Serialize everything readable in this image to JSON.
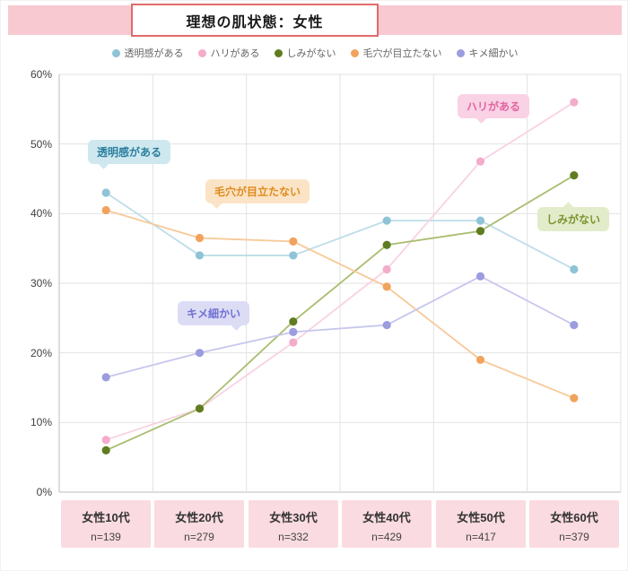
{
  "header": {
    "title": "理想の肌状態：女性"
  },
  "chart_data": {
    "type": "line",
    "title": "理想の肌状態：女性",
    "categories": [
      "女性10代",
      "女性20代",
      "女性30代",
      "女性40代",
      "女性50代",
      "女性60代"
    ],
    "category_sublabels": [
      "n=139",
      "n=279",
      "n=332",
      "n=429",
      "n=417",
      "n=379"
    ],
    "ylim": [
      0,
      60
    ],
    "ytick_step": 10,
    "ytick_labels_top_down": [
      "60%",
      "50%",
      "40%",
      "30%",
      "20%",
      "10%",
      "0%"
    ],
    "grid": true,
    "legend_position": "top",
    "series": [
      {
        "name": "透明感がある",
        "marker_color": "#8fc3d6",
        "line_color": "#bddde8",
        "values": [
          43,
          34,
          34,
          39,
          39,
          32
        ]
      },
      {
        "name": "ハリがある",
        "marker_color": "#f3accb",
        "line_color": "#f9d2e3",
        "values": [
          7.5,
          12,
          21.5,
          32,
          47.5,
          56
        ]
      },
      {
        "name": "しみがない",
        "marker_color": "#5f7d20",
        "line_color": "#a9bd6f",
        "values": [
          6,
          12,
          24.5,
          35.5,
          37.5,
          45.5
        ]
      },
      {
        "name": "毛穴が目立たない",
        "marker_color": "#f1a35d",
        "line_color": "#f7c998",
        "values": [
          40.5,
          36.5,
          36,
          29.5,
          19,
          13.5
        ]
      },
      {
        "name": "キメ細かい",
        "marker_color": "#9c9cdf",
        "line_color": "#c6c6ee",
        "values": [
          16.5,
          20,
          23,
          24,
          31,
          24
        ]
      }
    ],
    "annotations": [
      {
        "text": "透明感がある",
        "fg": "#2b7f9e",
        "bg": "#cfe8f0"
      },
      {
        "text": "毛穴が目立たない",
        "fg": "#e08a1e",
        "bg": "#fbe4c6"
      },
      {
        "text": "キメ細かい",
        "fg": "#7070d2",
        "bg": "#dcdcf5"
      },
      {
        "text": "ハリがある",
        "fg": "#e2649f",
        "bg": "#f9d2e5"
      },
      {
        "text": "しみがない",
        "fg": "#7b942f",
        "bg": "#e3ecca"
      }
    ]
  },
  "colors": {
    "banner_bg": "#f9c9d2",
    "title_border": "#e06a6a",
    "category_box_bg": "#fadbe1",
    "grid": "#e2e2e2",
    "axis": "#bcbcbc"
  }
}
